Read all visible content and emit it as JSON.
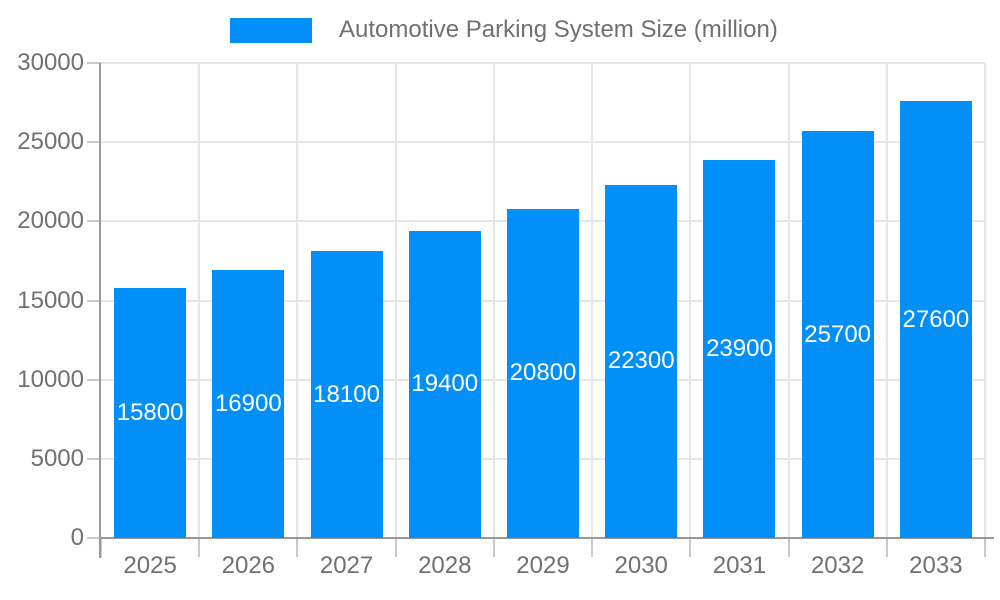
{
  "chart_data": {
    "type": "bar",
    "title": "",
    "legend": {
      "label": "Automotive Parking System Size (million)",
      "position": "top-center"
    },
    "categories": [
      "2025",
      "2026",
      "2027",
      "2028",
      "2029",
      "2030",
      "2031",
      "2032",
      "2033"
    ],
    "series": [
      {
        "name": "Automotive Parking System Size (million)",
        "values": [
          15800,
          16900,
          18100,
          19400,
          20800,
          22300,
          23900,
          25700,
          27600
        ]
      }
    ],
    "value_labels_shown": true,
    "xlabel": "",
    "ylabel": "",
    "ylim": [
      0,
      30000
    ],
    "y_ticks": [
      0,
      5000,
      10000,
      15000,
      20000,
      25000,
      30000
    ],
    "grid": true,
    "colors": {
      "bar": "#0290f8",
      "gridline": "#e6e6e6",
      "axis": "#999999",
      "tick": "#c9c9c9",
      "axis_label": "#707070",
      "value_label": "#ffffff",
      "background": "#ffffff"
    }
  }
}
